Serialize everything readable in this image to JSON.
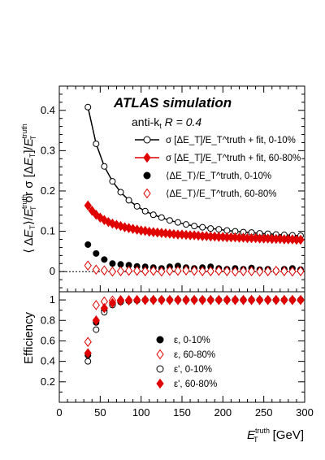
{
  "chart_data": [
    {
      "panel": "upper",
      "type": "scatter",
      "experiment": "ATLAS",
      "experiment_suffix": "simulation",
      "algorithm": "anti-k",
      "algorithm_subscript": "t",
      "radius_label": "R = 0.4",
      "ylabel": "⟨ΔE_T⟩/E_T^truth or σ[ΔE_T]/E_T^truth",
      "ylim": [
        -0.05,
        0.46
      ],
      "yticks": [
        0,
        0.1,
        0.2,
        0.3,
        0.4
      ],
      "ytick_labels": [
        "0",
        "0.1",
        "0.2",
        "0.3",
        "0.4"
      ],
      "xlim": [
        0,
        300
      ],
      "reference_line_y": 0,
      "series": [
        {
          "name": "σ [ΔE_T]/E_T^truth + fit, 0-10%",
          "marker": "open-circle",
          "color": "#000000",
          "fit": true,
          "x": [
            35,
            45,
            55,
            65,
            75,
            85,
            95,
            105,
            115,
            125,
            135,
            145,
            155,
            165,
            175,
            185,
            195,
            205,
            215,
            225,
            235,
            245,
            255,
            265,
            275,
            285,
            295
          ],
          "y": [
            0.408,
            0.317,
            0.261,
            0.224,
            0.197,
            0.177,
            0.162,
            0.15,
            0.141,
            0.134,
            0.127,
            0.122,
            0.117,
            0.113,
            0.11,
            0.107,
            0.105,
            0.102,
            0.1,
            0.098,
            0.097,
            0.095,
            0.094,
            0.092,
            0.091,
            0.09,
            0.089
          ]
        },
        {
          "name": "σ [ΔE_T]/E_T^truth + fit, 60-80%",
          "marker": "filled-diamond",
          "color": "#e00000",
          "fit": true,
          "x": [
            35,
            40,
            45,
            50,
            55,
            60,
            65,
            70,
            75,
            80,
            85,
            90,
            95,
            100,
            105,
            110,
            115,
            120,
            125,
            130,
            135,
            140,
            145,
            150,
            155,
            160,
            165,
            170,
            175,
            180,
            185,
            190,
            195,
            200,
            205,
            210,
            215,
            220,
            225,
            230,
            235,
            240,
            245,
            250,
            255,
            260,
            265,
            270,
            275,
            280,
            285,
            290,
            295
          ],
          "y": [
            0.164,
            0.151,
            0.141,
            0.134,
            0.128,
            0.123,
            0.119,
            0.116,
            0.113,
            0.11,
            0.108,
            0.106,
            0.104,
            0.102,
            0.101,
            0.099,
            0.098,
            0.097,
            0.096,
            0.095,
            0.094,
            0.093,
            0.092,
            0.092,
            0.091,
            0.09,
            0.09,
            0.089,
            0.088,
            0.088,
            0.087,
            0.087,
            0.086,
            0.086,
            0.085,
            0.085,
            0.085,
            0.084,
            0.084,
            0.083,
            0.083,
            0.083,
            0.082,
            0.082,
            0.082,
            0.081,
            0.081,
            0.081,
            0.08,
            0.08,
            0.08,
            0.079,
            0.079
          ]
        },
        {
          "name": "⟨ΔE_T⟩/E_T^truth, 0-10%",
          "marker": "filled-circle",
          "color": "#000000",
          "fit": false,
          "x": [
            35,
            45,
            55,
            65,
            75,
            85,
            95,
            105,
            115,
            125,
            135,
            145,
            155,
            165,
            175,
            185,
            195,
            205,
            215,
            225,
            235,
            245,
            255,
            265,
            275,
            285,
            295
          ],
          "y": [
            0.067,
            0.045,
            0.03,
            0.02,
            0.018,
            0.016,
            0.013,
            0.012,
            0.01,
            0.008,
            0.012,
            0.014,
            0.01,
            0.008,
            0.01,
            0.012,
            0.008,
            0.006,
            0.008,
            0.006,
            0.009,
            0.005,
            0.006,
            0.002,
            0.006,
            0.008,
            0.005
          ]
        },
        {
          "name": "⟨ΔE_T⟩/E_T^truth, 60-80%",
          "marker": "open-diamond",
          "color": "#e00000",
          "fit": false,
          "x": [
            35,
            45,
            55,
            65,
            75,
            85,
            95,
            105,
            115,
            125,
            135,
            145,
            155,
            165,
            175,
            185,
            195,
            205,
            215,
            225,
            235,
            245,
            255,
            265,
            275,
            285,
            295
          ],
          "y": [
            0.015,
            0.005,
            0.003,
            0.0,
            0.001,
            0.002,
            0.002,
            0.001,
            0.002,
            0.0,
            0.002,
            0.002,
            0.003,
            0.002,
            0.001,
            0.001,
            0.002,
            0.001,
            0.0,
            0.001,
            0.001,
            0.0,
            0.001,
            0.002,
            0.001,
            0.0,
            0.001
          ]
        }
      ]
    },
    {
      "panel": "lower",
      "type": "scatter",
      "ylabel": "Efficiency",
      "ylim": [
        0,
        1.08
      ],
      "yticks": [
        0.2,
        0.4,
        0.6,
        0.8,
        1
      ],
      "ytick_labels": [
        "0.2",
        "0.4",
        "0.6",
        "0.8",
        "1"
      ],
      "xlabel": "E_T^truth [GeV]",
      "xlim": [
        0,
        300
      ],
      "xticks": [
        0,
        50,
        100,
        150,
        200,
        250,
        300
      ],
      "xtick_labels": [
        "0",
        "50",
        "100",
        "150",
        "200",
        "250",
        "300"
      ],
      "series": [
        {
          "name": "ε, 0-10%",
          "marker": "filled-circle",
          "color": "#000000",
          "x": [
            35,
            45,
            55,
            65,
            75,
            85,
            95,
            105,
            115,
            125,
            135,
            145,
            155,
            165,
            175,
            185,
            195,
            205,
            215,
            225,
            235,
            245,
            255,
            265,
            275,
            285,
            295
          ],
          "y": [
            0.46,
            0.78,
            0.9,
            0.96,
            0.98,
            0.99,
            0.995,
            1.0,
            1.0,
            1.0,
            1.0,
            1.0,
            1.0,
            1.0,
            1.0,
            1.0,
            1.0,
            1.0,
            1.0,
            1.0,
            1.0,
            1.0,
            1.0,
            1.0,
            1.0,
            1.0,
            1.0
          ]
        },
        {
          "name": "ε, 60-80%",
          "marker": "open-diamond",
          "color": "#e00000",
          "x": [
            35,
            45,
            55,
            65,
            75,
            85,
            95,
            105,
            115,
            125,
            135,
            145,
            155,
            165,
            175,
            185,
            195,
            205,
            215,
            225,
            235,
            245,
            255,
            265,
            275,
            285,
            295
          ],
          "y": [
            0.59,
            0.95,
            0.985,
            0.995,
            1.0,
            1.0,
            1.0,
            1.0,
            1.0,
            1.0,
            1.0,
            1.0,
            1.0,
            1.0,
            1.0,
            1.0,
            1.0,
            1.0,
            1.0,
            1.0,
            1.0,
            1.0,
            1.0,
            1.0,
            1.0,
            1.0,
            1.0
          ]
        },
        {
          "name": "ε', 0-10%",
          "marker": "open-circle",
          "color": "#000000",
          "x": [
            35,
            45,
            55,
            65,
            75,
            85,
            95,
            105,
            115,
            125,
            135,
            145,
            155,
            165,
            175,
            185,
            195,
            205,
            215,
            225,
            235,
            245,
            255,
            265,
            275,
            285,
            295
          ],
          "y": [
            0.4,
            0.71,
            0.88,
            0.95,
            0.98,
            0.99,
            0.995,
            1.0,
            1.0,
            1.0,
            1.0,
            1.0,
            1.0,
            1.0,
            1.0,
            1.0,
            1.0,
            1.0,
            1.0,
            1.0,
            1.0,
            1.0,
            1.0,
            1.0,
            1.0,
            1.0,
            1.0
          ]
        },
        {
          "name": "ε', 60-80%",
          "marker": "filled-diamond",
          "color": "#e00000",
          "x": [
            35,
            45,
            55,
            65,
            75,
            85,
            95,
            105,
            115,
            125,
            135,
            145,
            155,
            165,
            175,
            185,
            195,
            205,
            215,
            225,
            235,
            245,
            255,
            265,
            275,
            285,
            295
          ],
          "y": [
            0.48,
            0.8,
            0.92,
            0.97,
            0.99,
            0.995,
            1.0,
            1.0,
            1.0,
            1.0,
            1.0,
            1.0,
            1.0,
            1.0,
            1.0,
            1.0,
            1.0,
            1.0,
            1.0,
            1.0,
            1.0,
            1.0,
            1.0,
            1.0,
            1.0,
            1.0,
            1.0
          ]
        }
      ]
    }
  ]
}
